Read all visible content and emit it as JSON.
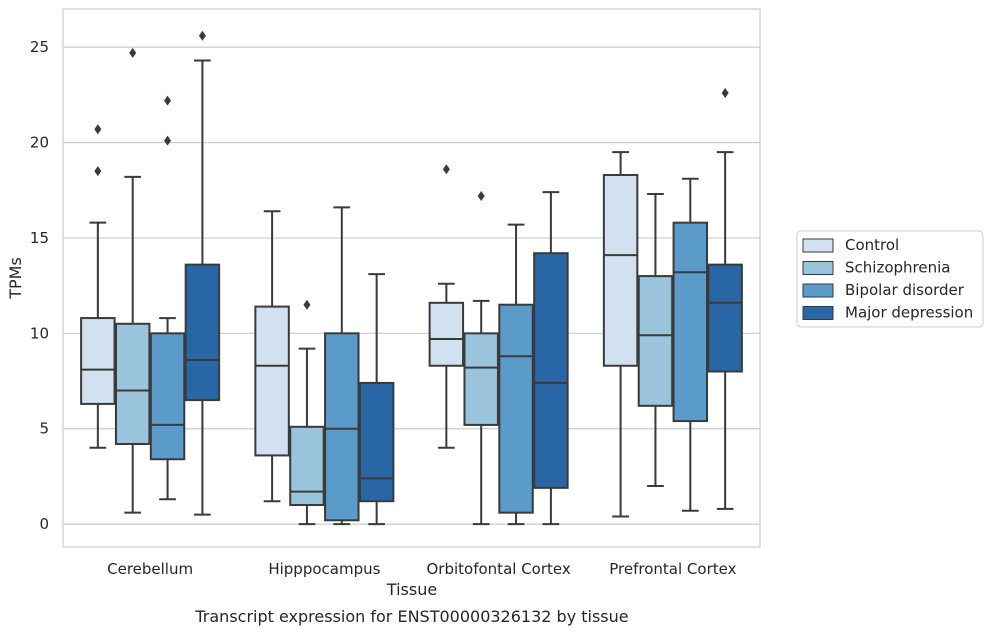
{
  "chart_data": {
    "type": "box",
    "title": "",
    "caption": "Transcript expression for ENST00000326132 by tissue",
    "xlabel": "Tissue",
    "ylabel": "TPMs",
    "ylim": [
      -1.2,
      27
    ],
    "yticks": [
      0,
      5,
      10,
      15,
      20,
      25
    ],
    "grid": "horizontal",
    "legend_position": "right",
    "categories": [
      "Cerebellum",
      "Hipppocampus",
      "Orbitofontal Cortex",
      "Prefrontal Cortex"
    ],
    "series": [
      {
        "name": "Control",
        "color": "#d1e1f0",
        "boxes": [
          {
            "whislo": 4.0,
            "q1": 6.3,
            "med": 8.1,
            "q3": 10.8,
            "whishi": 15.8,
            "fliers": [
              18.5,
              20.7
            ]
          },
          {
            "whislo": 1.2,
            "q1": 3.6,
            "med": 8.3,
            "q3": 11.4,
            "whishi": 16.4,
            "fliers": []
          },
          {
            "whislo": 4.0,
            "q1": 8.3,
            "med": 9.7,
            "q3": 11.6,
            "whishi": 12.6,
            "fliers": [
              18.6
            ]
          },
          {
            "whislo": 0.4,
            "q1": 8.3,
            "med": 14.1,
            "q3": 18.3,
            "whishi": 19.5,
            "fliers": []
          }
        ]
      },
      {
        "name": "Schizophrenia",
        "color": "#9ac3dc",
        "boxes": [
          {
            "whislo": 0.6,
            "q1": 4.2,
            "med": 7.0,
            "q3": 10.5,
            "whishi": 18.2,
            "fliers": [
              24.7
            ]
          },
          {
            "whislo": 0.0,
            "q1": 1.0,
            "med": 1.7,
            "q3": 5.1,
            "whishi": 9.2,
            "fliers": [
              11.5
            ]
          },
          {
            "whislo": 0.0,
            "q1": 5.2,
            "med": 8.2,
            "q3": 10.0,
            "whishi": 11.7,
            "fliers": [
              17.2
            ]
          },
          {
            "whislo": 2.0,
            "q1": 6.2,
            "med": 9.9,
            "q3": 13.0,
            "whishi": 17.3,
            "fliers": []
          }
        ]
      },
      {
        "name": "Bipolar disorder",
        "color": "#5a9bc9",
        "boxes": [
          {
            "whislo": 1.3,
            "q1": 3.4,
            "med": 5.2,
            "q3": 10.0,
            "whishi": 10.8,
            "fliers": [
              20.1,
              22.2
            ]
          },
          {
            "whislo": 0.0,
            "q1": 0.2,
            "med": 5.0,
            "q3": 10.0,
            "whishi": 16.6,
            "fliers": []
          },
          {
            "whislo": 0.0,
            "q1": 0.6,
            "med": 8.8,
            "q3": 11.5,
            "whishi": 15.7,
            "fliers": []
          },
          {
            "whislo": 0.7,
            "q1": 5.4,
            "med": 13.2,
            "q3": 15.8,
            "whishi": 18.1,
            "fliers": []
          }
        ]
      },
      {
        "name": "Major depression",
        "color": "#2866a5",
        "boxes": [
          {
            "whislo": 0.5,
            "q1": 6.5,
            "med": 8.6,
            "q3": 13.6,
            "whishi": 24.3,
            "fliers": [
              25.6
            ]
          },
          {
            "whislo": 0.0,
            "q1": 1.2,
            "med": 2.4,
            "q3": 7.4,
            "whishi": 13.1,
            "fliers": []
          },
          {
            "whislo": 0.0,
            "q1": 1.9,
            "med": 7.4,
            "q3": 14.2,
            "whishi": 17.4,
            "fliers": []
          },
          {
            "whislo": 0.8,
            "q1": 8.0,
            "med": 11.6,
            "q3": 13.6,
            "whishi": 19.5,
            "fliers": [
              22.6
            ]
          }
        ]
      }
    ],
    "colors": {
      "edge": "#3a3a3a",
      "grid": "#cccccc",
      "frame": "#cccccc",
      "flier": "#3a3a3a"
    }
  }
}
